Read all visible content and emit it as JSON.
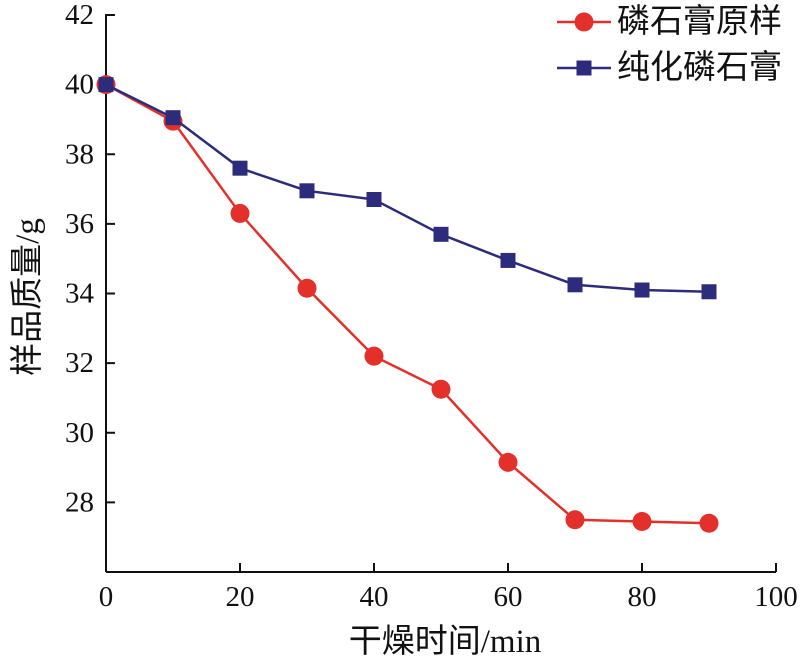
{
  "chart_data": {
    "type": "line",
    "x": [
      0,
      10,
      20,
      30,
      40,
      50,
      60,
      70,
      80,
      90
    ],
    "series": [
      {
        "name": "磷石膏原样",
        "values": [
          40.0,
          38.95,
          36.3,
          34.15,
          32.2,
          31.25,
          29.15,
          27.5,
          27.45,
          27.4
        ],
        "color": "#E3302B",
        "marker": "circle"
      },
      {
        "name": "纯化磷石膏",
        "values": [
          40.0,
          39.05,
          37.6,
          36.95,
          36.7,
          35.7,
          34.95,
          34.25,
          34.1,
          34.05
        ],
        "color": "#2D2B7B",
        "marker": "square"
      }
    ],
    "xlabel": "干燥时间/min",
    "ylabel": "样品质量/g",
    "xlim": [
      0,
      100
    ],
    "ylim": [
      26,
      42
    ],
    "xticks": [
      0,
      20,
      40,
      60,
      80,
      100
    ],
    "yticks": [
      28,
      30,
      32,
      34,
      36,
      38,
      40,
      42
    ],
    "grid": false,
    "legend": "top-right"
  }
}
